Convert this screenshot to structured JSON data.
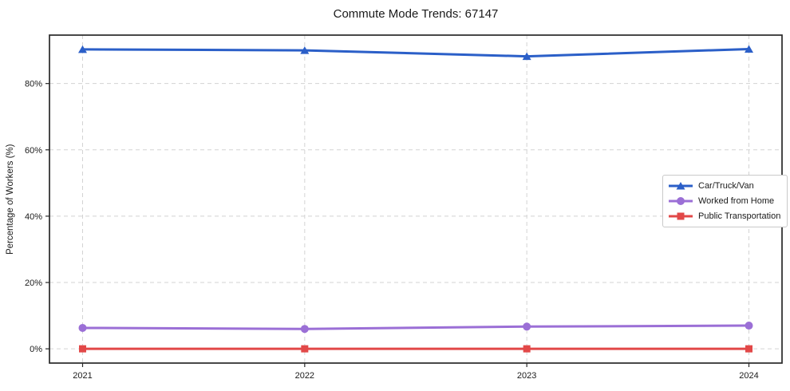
{
  "chart_data": {
    "type": "line",
    "title": "Commute Mode Trends: 67147",
    "xlabel": "",
    "ylabel": "Percentage of Workers (%)",
    "x": [
      2021,
      2022,
      2023,
      2024
    ],
    "x_tick_labels": [
      "2021",
      "2022",
      "2023",
      "2024"
    ],
    "y_ticks": [
      0,
      20,
      40,
      60,
      80
    ],
    "y_tick_labels": [
      "0%",
      "20%",
      "40%",
      "60%",
      "80%"
    ],
    "ylim": [
      -4.3,
      94.6
    ],
    "grid": "dashed, both axes",
    "legend_position": "center-right",
    "series": [
      {
        "name": "Car/Truck/Van",
        "marker": "triangle",
        "color": "#2b5fc8",
        "values": [
          90.3,
          90.0,
          88.2,
          90.4
        ]
      },
      {
        "name": "Worked from Home",
        "marker": "circle",
        "color": "#9b6fd6",
        "values": [
          6.3,
          6.0,
          6.7,
          7.0
        ]
      },
      {
        "name": "Public Transportation",
        "marker": "square",
        "color": "#e24848",
        "values": [
          0.0,
          0.0,
          0.0,
          0.0
        ]
      }
    ],
    "colors": {
      "grid": "#d3d3d3",
      "spine": "#282828",
      "text": "#1a1a1a",
      "background": "#ffffff"
    }
  }
}
